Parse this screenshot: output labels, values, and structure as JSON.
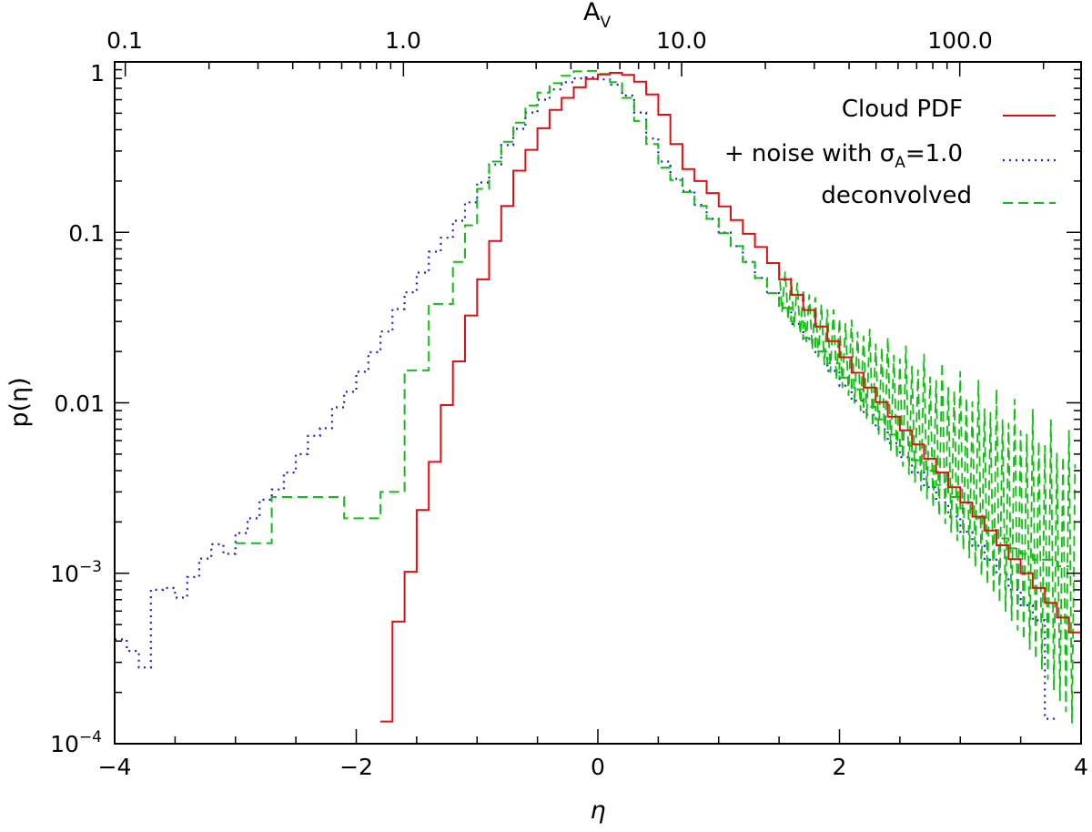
{
  "chart_data": {
    "type": "line",
    "style": "step histogram",
    "x_axis": {
      "label": "η",
      "scale": "linear",
      "range": [
        -4,
        4
      ],
      "ticks": [
        -4,
        -2,
        0,
        2,
        4
      ],
      "tick_labels": [
        "−4",
        "−2",
        "0",
        "2",
        "4"
      ]
    },
    "y_axis": {
      "label": "p(η)",
      "scale": "log",
      "range": [
        0.0001,
        1
      ],
      "ticks": [
        0.0001,
        0.001,
        0.01,
        0.1,
        1
      ],
      "tick_labels": [
        {
          "base": "10",
          "exp": "−4"
        },
        {
          "base": "10",
          "exp": "−3"
        },
        {
          "text": "0.01"
        },
        {
          "text": "0.1"
        },
        {
          "text": "1"
        }
      ]
    },
    "top_axis": {
      "label": {
        "base": "A",
        "sub": "V"
      },
      "scale": "log",
      "reference_av": 5.0,
      "ticks": [
        0.1,
        1.0,
        10.0,
        100.0
      ],
      "tick_labels": [
        "0.1",
        "1.0",
        "10.0",
        "100.0"
      ]
    },
    "bin_width": 0.1,
    "legend": {
      "placement": "top-right",
      "entries": [
        {
          "key": "cloud",
          "label": "Cloud PDF",
          "color": "#e01010",
          "dash": "solid"
        },
        {
          "key": "noise",
          "label_prefix": "+ noise with σ",
          "label_sub": "A",
          "label_suffix": "=1.0",
          "color": "#1a1aee",
          "dash": "dotted"
        },
        {
          "key": "deconv",
          "label": "deconvolved",
          "color": "#10c010",
          "dash": "dashed"
        }
      ]
    },
    "series": [
      {
        "key": "cloud",
        "name": "Cloud PDF",
        "x_start": -1.8,
        "values": [
          0.000135,
          0.00052,
          0.00102,
          0.00235,
          0.0045,
          0.0097,
          0.0175,
          0.0325,
          0.053,
          0.089,
          0.143,
          0.23,
          0.305,
          0.408,
          0.523,
          0.615,
          0.71,
          0.794,
          0.845,
          0.863,
          0.84,
          0.765,
          0.645,
          0.49,
          0.33,
          0.235,
          0.2,
          0.17,
          0.142,
          0.118,
          0.098,
          0.082,
          0.066,
          0.053,
          0.043,
          0.035,
          0.028,
          0.023,
          0.0185,
          0.015,
          0.0123,
          0.0101,
          0.0083,
          0.0069,
          0.0057,
          0.0047,
          0.0039,
          0.0032,
          0.0026,
          0.00215,
          0.00178,
          0.00146,
          0.00121,
          0.001,
          0.00082,
          0.00067,
          0.00055,
          0.00045
        ]
      },
      {
        "key": "noise",
        "name": "+ noise with σA=1.0",
        "x_start": -4.0,
        "values": [
          0.00041,
          0.00035,
          0.00028,
          0.0008,
          0.00082,
          0.00072,
          0.00095,
          0.00122,
          0.00148,
          0.0013,
          0.00172,
          0.0021,
          0.0027,
          0.0031,
          0.0039,
          0.005,
          0.0064,
          0.0071,
          0.0094,
          0.0116,
          0.0152,
          0.0198,
          0.0262,
          0.0355,
          0.0445,
          0.058,
          0.077,
          0.093,
          0.117,
          0.15,
          0.196,
          0.25,
          0.325,
          0.405,
          0.505,
          0.6,
          0.69,
          0.76,
          0.8,
          0.81,
          0.79,
          0.735,
          0.635,
          0.505,
          0.355,
          0.26,
          0.206,
          0.175,
          0.145,
          0.12,
          0.1,
          0.083,
          0.067,
          0.054,
          0.044,
          0.036,
          0.029,
          0.0237,
          0.019,
          0.0154,
          0.0126,
          0.0103,
          0.0085,
          0.007,
          0.0058,
          0.0048,
          0.0039,
          0.0032,
          0.0026,
          0.00215,
          0.00175,
          0.00145,
          0.0012,
          0.00098,
          0.0008,
          0.00065,
          0.00053,
          0.00014
        ]
      },
      {
        "key": "deconv",
        "name": "deconvolved",
        "x_start": -3.0,
        "values": [
          0.0015,
          0.0015,
          0.0015,
          0.0028,
          0.0028,
          0.0028,
          0.0028,
          0.0028,
          0.0028,
          0.0021,
          0.0021,
          0.0021,
          0.003,
          0.003,
          0.0155,
          0.0155,
          0.038,
          0.038,
          0.067,
          0.11,
          0.18,
          0.26,
          0.34,
          0.44,
          0.555,
          0.66,
          0.75,
          0.83,
          0.88,
          0.885,
          0.85,
          0.76,
          0.615,
          0.45,
          0.33,
          0.24,
          0.203,
          0.172,
          0.143,
          0.12,
          0.099,
          0.083,
          0.067,
          0.054,
          0.044,
          0.036,
          0.03,
          0.024,
          0.02,
          0.017,
          0.014,
          0.012,
          0.0095,
          0.008,
          0.0065,
          0.0056,
          0.0046,
          0.004,
          0.0033,
          0.0028,
          0.0024,
          0.0021,
          0.0018,
          0.0016,
          0.0014,
          0.0013,
          0.0012,
          0.0012,
          0.0011
        ],
        "noisy_tail": {
          "x_start": 1.5,
          "x_end": 3.95,
          "step": 0.025,
          "lower_fraction": 0.12,
          "upper_factor": 6.5
        }
      }
    ]
  }
}
